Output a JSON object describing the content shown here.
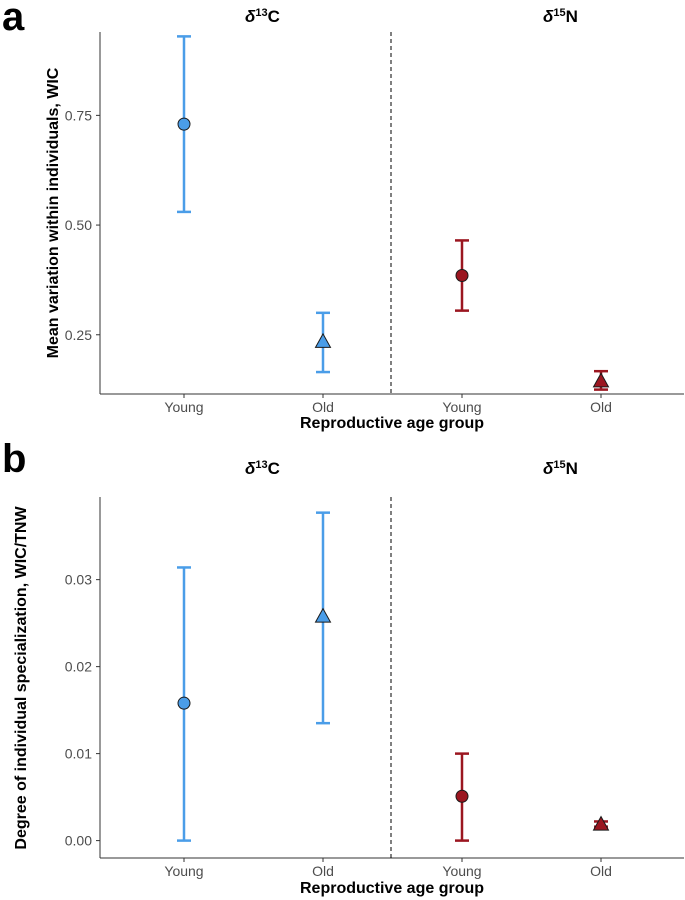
{
  "colors": {
    "carbon": "#4a9de8",
    "carbon_fill": "#4a9de8",
    "nitrogen": "#9b1620",
    "nitrogen_fill": "#9b1620"
  },
  "chart_data": [
    {
      "type": "scatter",
      "panel_letter": "a",
      "facets": [
        {
          "symbol": "δ",
          "superscript": "13",
          "element": "C",
          "color_key": "carbon"
        },
        {
          "symbol": "δ",
          "superscript": "15",
          "element": "N",
          "color_key": "nitrogen"
        }
      ],
      "categories": [
        "Young",
        "Old",
        "Young",
        "Old"
      ],
      "xlabel": "Reproductive age group",
      "ylabel": "Mean variation within individuals, WIC",
      "yticks": [
        "0.25",
        "0.50",
        "0.75"
      ],
      "ytick_values": [
        0.25,
        0.5,
        0.75
      ],
      "ylim": [
        0.115,
        0.94
      ],
      "grid": false,
      "points": [
        {
          "facet": 0,
          "category": "Young",
          "value": 0.73,
          "low": 0.53,
          "high": 0.93,
          "shape": "circle"
        },
        {
          "facet": 0,
          "category": "Old",
          "value": 0.235,
          "low": 0.165,
          "high": 0.3,
          "shape": "triangle"
        },
        {
          "facet": 1,
          "category": "Young",
          "value": 0.385,
          "low": 0.305,
          "high": 0.465,
          "shape": "circle"
        },
        {
          "facet": 1,
          "category": "Old",
          "value": 0.145,
          "low": 0.125,
          "high": 0.167,
          "shape": "triangle"
        }
      ]
    },
    {
      "type": "scatter",
      "panel_letter": "b",
      "facets": [
        {
          "symbol": "δ",
          "superscript": "13",
          "element": "C",
          "color_key": "carbon"
        },
        {
          "symbol": "δ",
          "superscript": "15",
          "element": "N",
          "color_key": "nitrogen"
        }
      ],
      "categories": [
        "Young",
        "Old",
        "Young",
        "Old"
      ],
      "xlabel": "Reproductive age group",
      "ylabel": "Degree of individual specialization, WIC/TNW",
      "yticks": [
        "0.00",
        "0.01",
        "0.02",
        "0.03"
      ],
      "ytick_values": [
        0,
        0.01,
        0.02,
        0.03
      ],
      "ylim": [
        -0.002,
        0.0395
      ],
      "grid": false,
      "points": [
        {
          "facet": 0,
          "category": "Young",
          "value": 0.0158,
          "low": 0.0,
          "high": 0.0314,
          "shape": "circle"
        },
        {
          "facet": 0,
          "category": "Old",
          "value": 0.0258,
          "low": 0.0135,
          "high": 0.0377,
          "shape": "triangle"
        },
        {
          "facet": 1,
          "category": "Young",
          "value": 0.0051,
          "low": 0.0,
          "high": 0.01,
          "shape": "circle"
        },
        {
          "facet": 1,
          "category": "Old",
          "value": 0.0019,
          "low": 0.0016,
          "high": 0.0022,
          "shape": "triangle"
        }
      ]
    }
  ]
}
